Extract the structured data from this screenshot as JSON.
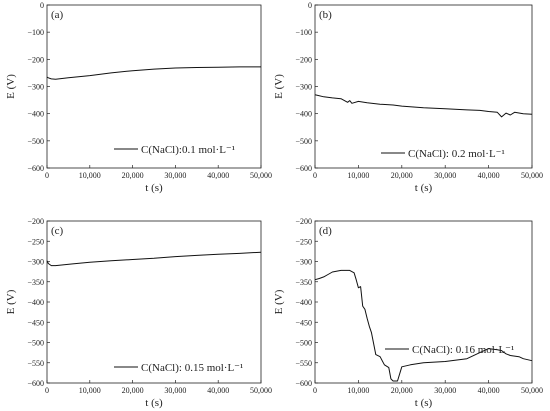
{
  "chart_data": [
    {
      "type": "line",
      "panel_label": "(a)",
      "xlabel": "t (s)",
      "ylabel": "E (V)",
      "xlim": [
        0,
        50000
      ],
      "ylim": [
        -600,
        0
      ],
      "xticks": [
        0,
        10000,
        20000,
        30000,
        40000,
        50000
      ],
      "xtick_labels": [
        "0",
        "10,000",
        "20,000",
        "30,000",
        "40,000",
        "50,000"
      ],
      "yticks": [
        0,
        -100,
        -200,
        -300,
        -400,
        -500,
        -600
      ],
      "ytick_labels": [
        "0",
        "−100",
        "−200",
        "−300",
        "−400",
        "−500",
        "−600"
      ],
      "grid": false,
      "legend_position": "bottom-right",
      "series": [
        {
          "name": "C(NaCl):0.1 mol·L⁻¹",
          "x": [
            0,
            300,
            1000,
            2000,
            5000,
            10000,
            15000,
            20000,
            25000,
            30000,
            35000,
            40000,
            45000,
            50000
          ],
          "y": [
            -265,
            -268,
            -272,
            -273,
            -268,
            -260,
            -250,
            -242,
            -236,
            -232,
            -230,
            -229,
            -228,
            -228
          ]
        }
      ]
    },
    {
      "type": "line",
      "panel_label": "(b)",
      "xlabel": "t (s)",
      "ylabel": "E (V)",
      "xlim": [
        0,
        50000
      ],
      "ylim": [
        -600,
        0
      ],
      "xticks": [
        0,
        10000,
        20000,
        30000,
        40000,
        50000
      ],
      "xtick_labels": [
        "0",
        "10,000",
        "20,000",
        "30,000",
        "40,000",
        "50,000"
      ],
      "yticks": [
        0,
        -100,
        -200,
        -300,
        -400,
        -500,
        -600
      ],
      "ytick_labels": [
        "0",
        "−100",
        "−200",
        "−300",
        "−400",
        "−500",
        "−600"
      ],
      "grid": false,
      "legend_position": "bottom-right",
      "series": [
        {
          "name": "C(NaCl): 0.2 mol·L⁻¹",
          "x": [
            0,
            500,
            2000,
            4000,
            6000,
            7500,
            8000,
            8500,
            10000,
            12000,
            15000,
            18000,
            20000,
            25000,
            30000,
            35000,
            38000,
            40000,
            42000,
            43000,
            44000,
            45000,
            46000,
            48000,
            50000
          ],
          "y": [
            -330,
            -332,
            -338,
            -342,
            -345,
            -358,
            -352,
            -362,
            -355,
            -360,
            -365,
            -368,
            -372,
            -378,
            -382,
            -386,
            -388,
            -392,
            -395,
            -412,
            -398,
            -405,
            -395,
            -400,
            -402
          ]
        }
      ]
    },
    {
      "type": "line",
      "panel_label": "(c)",
      "xlabel": "t (s)",
      "ylabel": "E (V)",
      "xlim": [
        0,
        50000
      ],
      "ylim": [
        -600,
        -200
      ],
      "xticks": [
        0,
        10000,
        20000,
        30000,
        40000,
        50000
      ],
      "xtick_labels": [
        "0",
        "10,000",
        "20,000",
        "30,000",
        "40,000",
        "50,000"
      ],
      "yticks": [
        -200,
        -250,
        -300,
        -350,
        -400,
        -450,
        -500,
        -550,
        -600
      ],
      "ytick_labels": [
        "−200",
        "−250",
        "−300",
        "−350",
        "−400",
        "−450",
        "−500",
        "−550",
        "−600"
      ],
      "grid": false,
      "legend_position": "bottom-right",
      "series": [
        {
          "name": "C(NaCl): 0.15 mol·L⁻¹",
          "x": [
            0,
            300,
            1000,
            2000,
            4000,
            6000,
            10000,
            15000,
            20000,
            25000,
            30000,
            35000,
            40000,
            45000,
            50000
          ],
          "y": [
            -298,
            -305,
            -310,
            -310,
            -308,
            -306,
            -302,
            -298,
            -295,
            -292,
            -288,
            -285,
            -282,
            -280,
            -277
          ]
        }
      ]
    },
    {
      "type": "line",
      "panel_label": "(d)",
      "xlabel": "t (s)",
      "ylabel": "E (V)",
      "xlim": [
        0,
        50000
      ],
      "ylim": [
        -600,
        -200
      ],
      "xticks": [
        0,
        10000,
        20000,
        30000,
        40000,
        50000
      ],
      "xtick_labels": [
        "0",
        "10,000",
        "20,000",
        "30,000",
        "40,000",
        "50,000"
      ],
      "yticks": [
        -200,
        -250,
        -300,
        -350,
        -400,
        -450,
        -500,
        -550,
        -600
      ],
      "ytick_labels": [
        "−200",
        "−250",
        "−300",
        "−350",
        "−400",
        "−450",
        "−500",
        "−550",
        "−600"
      ],
      "grid": false,
      "legend_position": "center-right",
      "series": [
        {
          "name": "C(NaCl): 0.16 mol·L⁻¹",
          "x": [
            0,
            1000,
            2000,
            3000,
            4000,
            6000,
            8000,
            9000,
            9500,
            10000,
            10500,
            11000,
            11500,
            12000,
            12500,
            13000,
            14000,
            15000,
            16000,
            17000,
            17500,
            18000,
            19000,
            20000,
            22000,
            25000,
            30000,
            35000,
            38000,
            40000,
            42000,
            43000,
            44000,
            45000,
            47000,
            48000,
            50000
          ],
          "y": [
            -345,
            -342,
            -338,
            -332,
            -326,
            -322,
            -322,
            -328,
            -345,
            -365,
            -362,
            -410,
            -418,
            -440,
            -460,
            -475,
            -530,
            -535,
            -555,
            -562,
            -590,
            -595,
            -595,
            -560,
            -555,
            -550,
            -547,
            -540,
            -525,
            -515,
            -518,
            -520,
            -528,
            -532,
            -535,
            -540,
            -545
          ]
        }
      ]
    }
  ]
}
